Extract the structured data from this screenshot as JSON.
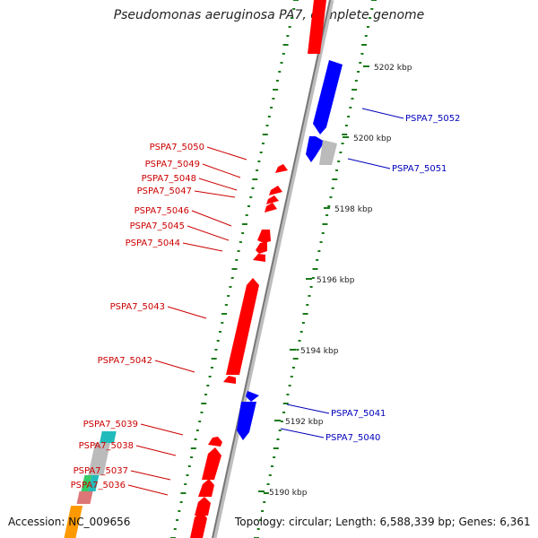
{
  "title": "Pseudomonas aeruginosa PA7, complete genome",
  "accession": "Accession: NC_009656",
  "topology": "Topology: circular; Length: 6,588,339 bp; Genes: 6,361",
  "colors": {
    "forward_gene": "#ff0000",
    "reverse_gene": "#0000ff",
    "forward_label": "#cc0000",
    "reverse_label": "#0000bb",
    "backbone": "#888888",
    "tick": "#1a7a1a",
    "pseudo_gene": "#bbbbbb",
    "cyan_gene": "#22bbbb",
    "green_gene": "#33cc66",
    "pink_gene": "#dd7777",
    "orange_gene": "#ff9900"
  },
  "scale_labels": [
    "5190 kbp",
    "5192 kbp",
    "5194 kbp",
    "5196 kbp",
    "5198 kbp",
    "5200 kbp",
    "5202 kbp"
  ],
  "left_labels": [
    "PSPA7_5050",
    "PSPA7_5049",
    "PSPA7_5048",
    "PSPA7_5047",
    "PSPA7_5046",
    "PSPA7_5045",
    "PSPA7_5044",
    "PSPA7_5043",
    "PSPA7_5042",
    "PSPA7_5039",
    "PSPA7_5038",
    "PSPA7_5037",
    "PSPA7_5036"
  ],
  "right_labels": [
    "PSPA7_5052",
    "PSPA7_5051",
    "PSPA7_5041",
    "PSPA7_5040"
  ]
}
